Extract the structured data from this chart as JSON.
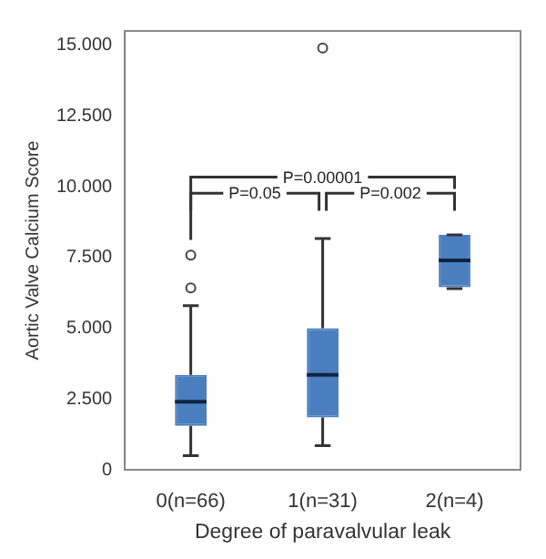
{
  "chart_data": {
    "type": "box",
    "xlabel": "Degree of paravalvular leak",
    "ylabel": "Aortic Valve Calcium Score",
    "categories": [
      "0(n=66)",
      "1(n=31)",
      "2(n=4)"
    ],
    "colors": [
      "#4a7ebf",
      "#4a7ebf",
      "#4a7ebf"
    ],
    "boxes": [
      {
        "low": 0.5,
        "q1": 1.55,
        "median": 2.4,
        "q3": 3.35,
        "high": 5.8,
        "outliers": [
          6.42,
          7.58
        ]
      },
      {
        "low": 0.85,
        "q1": 1.85,
        "median": 3.35,
        "q3": 5.0,
        "high": 8.17,
        "outliers": [
          14.9
        ]
      },
      {
        "low": 6.4,
        "q1": 6.45,
        "median": 7.4,
        "q3": 8.3,
        "high": 8.3
      }
    ],
    "ylim": [
      0,
      15.5
    ],
    "yticks": [
      {
        "value": 0,
        "label": "0"
      },
      {
        "value": 2.5,
        "label": "2.500"
      },
      {
        "value": 5,
        "label": "5.000"
      },
      {
        "value": 7.5,
        "label": "7.500"
      },
      {
        "value": 10,
        "label": "10.000"
      },
      {
        "value": 12.5,
        "label": "12.500"
      },
      {
        "value": 15,
        "label": "15.000"
      }
    ],
    "annotations": [
      "P=0.00001",
      "P=0.05",
      "P=0.002"
    ],
    "grid": false,
    "legend": false
  }
}
